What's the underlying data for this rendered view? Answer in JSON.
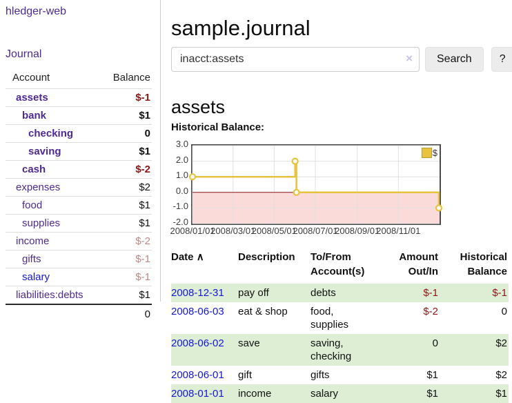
{
  "app": {
    "brand": "hledger-web",
    "nav": {
      "journal": "Journal"
    }
  },
  "sidebar": {
    "header": {
      "account": "Account",
      "balance": "Balance"
    },
    "accounts": [
      {
        "name": "assets",
        "balance": "$-1",
        "level": 1,
        "emphasized": true,
        "balance_tone": "negative-strong"
      },
      {
        "name": "bank",
        "balance": "$1",
        "level": 2,
        "emphasized": true,
        "balance_tone": "normal"
      },
      {
        "name": "checking",
        "balance": "0",
        "level": 3,
        "emphasized": true,
        "balance_tone": "normal"
      },
      {
        "name": "saving",
        "balance": "$1",
        "level": 3,
        "emphasized": true,
        "balance_tone": "normal"
      },
      {
        "name": "cash",
        "balance": "$-2",
        "level": 2,
        "emphasized": true,
        "balance_tone": "negative-strong"
      },
      {
        "name": "expenses",
        "balance": "$2",
        "level": 1,
        "emphasized": false,
        "balance_tone": "normal"
      },
      {
        "name": "food",
        "balance": "$1",
        "level": 2,
        "emphasized": false,
        "balance_tone": "normal"
      },
      {
        "name": "supplies",
        "balance": "$1",
        "level": 2,
        "emphasized": false,
        "balance_tone": "normal"
      },
      {
        "name": "income",
        "balance": "$-2",
        "level": 1,
        "emphasized": false,
        "balance_tone": "negative-muted"
      },
      {
        "name": "gifts",
        "balance": "$-1",
        "level": 2,
        "emphasized": false,
        "balance_tone": "negative-muted"
      },
      {
        "name": "salary",
        "balance": "$-1",
        "level": 2,
        "emphasized": false,
        "balance_tone": "negative-muted"
      },
      {
        "name": "liabilities:debts",
        "balance": "$1",
        "level": 1,
        "emphasized": false,
        "balance_tone": "normal"
      }
    ],
    "total": "0"
  },
  "header": {
    "title": "sample.journal"
  },
  "search": {
    "value": "inacct:assets",
    "clear_label": "×",
    "button_label": "Search",
    "help_label": "?"
  },
  "account_page": {
    "title": "assets",
    "chart_heading": "Historical Balance:"
  },
  "chart_data": {
    "type": "line",
    "step": true,
    "title": "Historical Balance:",
    "series": [
      {
        "name": "$",
        "color": "#e8c33f",
        "points": [
          [
            "2008-01-01",
            1
          ],
          [
            "2008-06-01",
            2
          ],
          [
            "2008-06-03",
            0
          ],
          [
            "2008-12-31",
            -1
          ]
        ]
      }
    ],
    "x_range": [
      "2008-01-01",
      "2009-01-01"
    ],
    "ylim": [
      -2,
      3
    ],
    "yticks": [
      3,
      2,
      1,
      0,
      -1,
      -2
    ],
    "ytick_labels": [
      "3.0",
      "2.0",
      "1.0",
      "0.0",
      "-1.0",
      "-2.0"
    ],
    "xticks": [
      "2008-01-01",
      "2008-03-01",
      "2008-05-01",
      "2008-07-01",
      "2008-09-01",
      "2008-11-01"
    ],
    "xtick_labels": [
      "2008/01/01",
      "2008/03/01",
      "2008/05/01",
      "2008/07/01",
      "2008/09/01",
      "2008/11/01"
    ],
    "grid": true,
    "legend_position": "top-right",
    "negative_region_color": "#fbdada",
    "zero_line_color": "#8b1515",
    "grid_color": "#e0e0e0"
  },
  "register": {
    "headers": {
      "date": "Date",
      "sort_arrow": "∧",
      "description": "Description",
      "accounts": "To/From\nAccount(s)",
      "amount": "Amount\nOut/In",
      "balance": "Historical\nBalance"
    },
    "rows": [
      {
        "date": "2008-12-31",
        "description": "pay off",
        "accounts": "debts",
        "amount": "$-1",
        "balance": "$-1",
        "amount_tone": "negative",
        "balance_tone": "negative",
        "highlighted": true
      },
      {
        "date": "2008-06-03",
        "description": "eat & shop",
        "accounts": "food, supplies",
        "amount": "$-2",
        "balance": "0",
        "amount_tone": "negative",
        "balance_tone": "normal",
        "highlighted": false
      },
      {
        "date": "2008-06-02",
        "description": "save",
        "accounts": "saving, checking",
        "amount": "0",
        "balance": "$2",
        "amount_tone": "normal",
        "balance_tone": "normal",
        "highlighted": true
      },
      {
        "date": "2008-06-01",
        "description": "gift",
        "accounts": "gifts",
        "amount": "$1",
        "balance": "$2",
        "amount_tone": "normal",
        "balance_tone": "normal",
        "highlighted": false
      },
      {
        "date": "2008-01-01",
        "description": "income",
        "accounts": "salary",
        "amount": "$1",
        "balance": "$1",
        "amount_tone": "normal",
        "balance_tone": "normal",
        "highlighted": true
      }
    ]
  },
  "colors": {
    "account_link_purple": "#4e2a92",
    "date_link_blue": "#1515d6",
    "negative_strong_red": "#8e1515",
    "negative_muted_red": "#bd8888",
    "row_highlight_green": "#ddeed4",
    "series_gold": "#e8c33f",
    "negative_region_pink": "#fbdada",
    "zero_line_dark_red": "#8b1515",
    "button_gray": "#ececec"
  }
}
